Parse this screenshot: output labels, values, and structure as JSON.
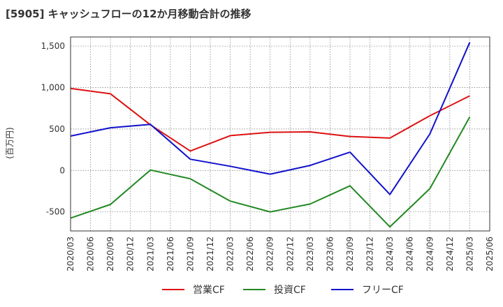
{
  "chart_data": {
    "type": "line",
    "title": "[5905]  キャッシュフローの12か月移動合計の推移",
    "ylabel": "(百万円)",
    "xlabel": "",
    "ylim": [
      -730,
      1610
    ],
    "yticks": [
      -500,
      0,
      500,
      1000,
      1500
    ],
    "ytick_labels": [
      "-500",
      "0",
      "500",
      "1,000",
      "1,500"
    ],
    "x": [
      "2020/03",
      "2020/06",
      "2020/09",
      "2020/12",
      "2021/03",
      "2021/06",
      "2021/09",
      "2021/12",
      "2022/03",
      "2022/06",
      "2022/09",
      "2022/12",
      "2023/03",
      "2023/06",
      "2023/09",
      "2023/12",
      "2024/03",
      "2024/06",
      "2024/09",
      "2024/12",
      "2025/03",
      "2025/06"
    ],
    "grid": true,
    "legend_position": "bottom",
    "series": [
      {
        "name": "営業CF",
        "color": "#dd1111",
        "points": [
          {
            "x": "2020/03",
            "y": 990
          },
          {
            "x": "2020/09",
            "y": 925
          },
          {
            "x": "2021/03",
            "y": 550
          },
          {
            "x": "2021/09",
            "y": 235
          },
          {
            "x": "2022/03",
            "y": 420
          },
          {
            "x": "2022/09",
            "y": 460
          },
          {
            "x": "2023/03",
            "y": 465
          },
          {
            "x": "2023/09",
            "y": 410
          },
          {
            "x": "2024/03",
            "y": 390
          },
          {
            "x": "2024/09",
            "y": 660
          },
          {
            "x": "2025/03",
            "y": 900
          }
        ]
      },
      {
        "name": "投資CF",
        "color": "#228822",
        "points": [
          {
            "x": "2020/03",
            "y": -575
          },
          {
            "x": "2020/09",
            "y": -410
          },
          {
            "x": "2021/03",
            "y": 5
          },
          {
            "x": "2021/09",
            "y": -100
          },
          {
            "x": "2022/03",
            "y": -370
          },
          {
            "x": "2022/09",
            "y": -500
          },
          {
            "x": "2023/03",
            "y": -405
          },
          {
            "x": "2023/09",
            "y": -185
          },
          {
            "x": "2024/03",
            "y": -680
          },
          {
            "x": "2024/09",
            "y": -220
          },
          {
            "x": "2025/03",
            "y": 645
          }
        ]
      },
      {
        "name": "フリーCF",
        "color": "#1111cc",
        "points": [
          {
            "x": "2020/03",
            "y": 415
          },
          {
            "x": "2020/09",
            "y": 515
          },
          {
            "x": "2021/03",
            "y": 555
          },
          {
            "x": "2021/09",
            "y": 135
          },
          {
            "x": "2022/03",
            "y": 50
          },
          {
            "x": "2022/09",
            "y": -45
          },
          {
            "x": "2023/03",
            "y": 60
          },
          {
            "x": "2023/09",
            "y": 220
          },
          {
            "x": "2024/03",
            "y": -290
          },
          {
            "x": "2024/09",
            "y": 440
          },
          {
            "x": "2025/03",
            "y": 1545
          }
        ]
      }
    ]
  }
}
